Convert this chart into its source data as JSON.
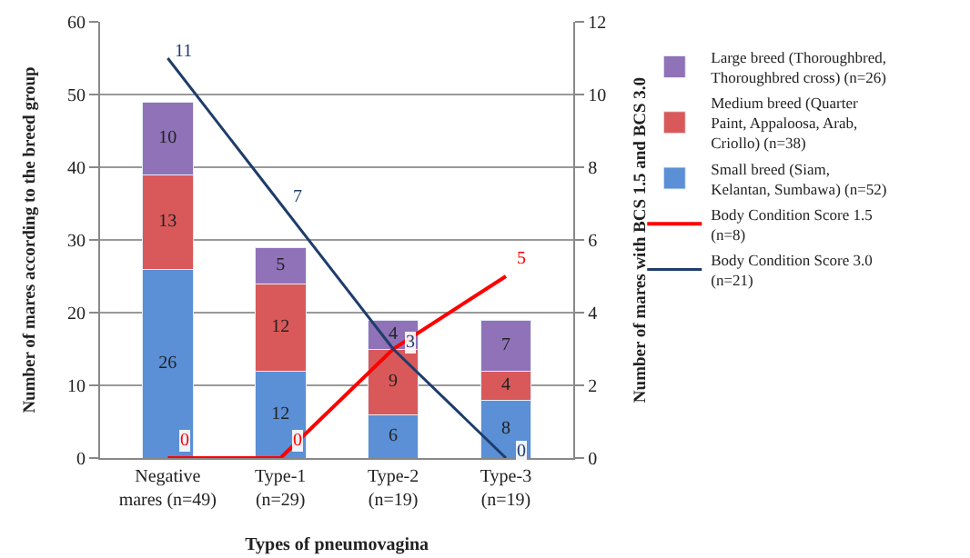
{
  "chart_data": {
    "type": "bar",
    "stacked": true,
    "xlabel": "Types of pneumovagina",
    "ylabel": "Number of mares according to the breed group",
    "y2label": "Number of mares with BCS 1.5 and BCS 3.0",
    "categories": [
      "Negative mares (n=49)",
      "Type-1 (n=29)",
      "Type-2 (n=19)",
      "Type-3 (n=19)"
    ],
    "series": [
      {
        "name": "Small breed (Siam, Kelantan, Sumbawa) (n=52)",
        "color": "#5b8fd6",
        "values": [
          26,
          12,
          6,
          8
        ]
      },
      {
        "name": "Medium breed (Quarter Paint, Appaloosa, Arab, Criollo) (n=38)",
        "color": "#d9595a",
        "values": [
          13,
          12,
          9,
          4
        ]
      },
      {
        "name": "Large breed (Thoroughbred, Thoroughbred cross) (n=26)",
        "color": "#8f72b8",
        "values": [
          10,
          5,
          4,
          7
        ]
      },
      {
        "name": "Body Condition Score 1.5 (n=8)",
        "type": "line",
        "axis": "y2",
        "color": "#ff0000",
        "values": [
          0,
          0,
          3,
          5
        ],
        "value_labels": [
          "0",
          "0",
          null,
          "5"
        ]
      },
      {
        "name": "Body Condition Score 3.0 (n=21)",
        "type": "line",
        "axis": "y2",
        "color": "#1f3d6b",
        "values": [
          11,
          7,
          3,
          0
        ]
      }
    ],
    "ylim": [
      0,
      60
    ],
    "yticks": [
      0,
      10,
      20,
      30,
      40,
      50,
      60
    ],
    "y2lim": [
      0,
      12
    ],
    "y2ticks": [
      0,
      2,
      4,
      6,
      8,
      10,
      12
    ],
    "grid": "y",
    "legend": "right",
    "data_labels": true,
    "marker": "none"
  }
}
